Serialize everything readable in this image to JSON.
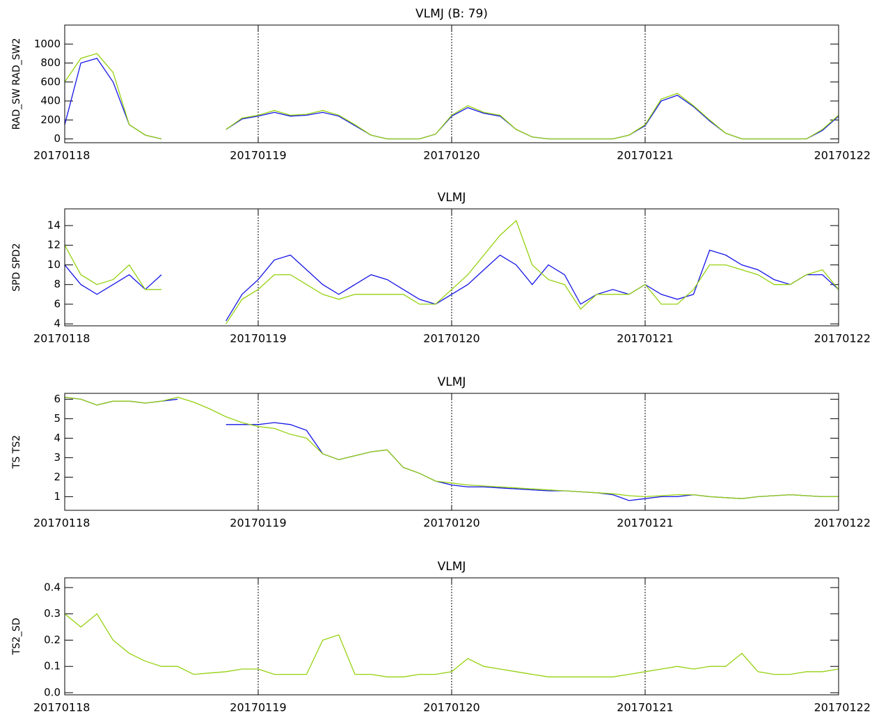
{
  "chart_data": [
    {
      "type": "line",
      "title": "VLMJ (B: 79)",
      "y_label": "RAD_SW RAD_SW2",
      "x": [
        0,
        2,
        4,
        6,
        8,
        10,
        12,
        14,
        16,
        18,
        20,
        22,
        24,
        26,
        28,
        30,
        32,
        34,
        36,
        38,
        40,
        42,
        44,
        46,
        48,
        50,
        52,
        54,
        56,
        58,
        60,
        62,
        64,
        66,
        68,
        70,
        72,
        74,
        76,
        78,
        80,
        82,
        84,
        86,
        88,
        90,
        92,
        94,
        96
      ],
      "xlim": [
        0,
        96
      ],
      "xticks": [
        {
          "value": 0,
          "label": "20170118"
        },
        {
          "value": 24,
          "label": "20170119"
        },
        {
          "value": 48,
          "label": "20170120"
        },
        {
          "value": 72,
          "label": "20170121"
        },
        {
          "value": 96,
          "label": "20170122"
        }
      ],
      "ylim": [
        -40,
        1200
      ],
      "yticks": [
        0,
        200,
        400,
        600,
        800,
        1000
      ],
      "grid": true,
      "series": [
        {
          "name": "RAD_SW",
          "color": "#1414e6",
          "values": [
            150,
            800,
            850,
            600,
            150,
            40,
            0,
            null,
            null,
            null,
            100,
            210,
            240,
            280,
            240,
            250,
            280,
            240,
            140,
            40,
            0,
            0,
            0,
            50,
            240,
            330,
            270,
            240,
            100,
            20,
            0,
            0,
            0,
            0,
            0,
            40,
            140,
            400,
            460,
            340,
            190,
            60,
            0,
            0,
            0,
            0,
            0,
            90,
            240
          ]
        },
        {
          "name": "RAD_SW2",
          "color": "#94d10f",
          "values": [
            600,
            850,
            900,
            700,
            150,
            40,
            0,
            null,
            null,
            null,
            100,
            220,
            250,
            300,
            250,
            260,
            300,
            250,
            150,
            40,
            0,
            0,
            0,
            50,
            250,
            350,
            280,
            250,
            100,
            20,
            0,
            0,
            0,
            0,
            0,
            40,
            150,
            420,
            480,
            350,
            200,
            60,
            0,
            0,
            0,
            0,
            0,
            100,
            250
          ]
        }
      ]
    },
    {
      "type": "line",
      "title": "VLMJ",
      "y_label": "SPD SPD2",
      "x": [
        0,
        2,
        4,
        6,
        8,
        10,
        12,
        14,
        16,
        18,
        20,
        22,
        24,
        26,
        28,
        30,
        32,
        34,
        36,
        38,
        40,
        42,
        44,
        46,
        48,
        50,
        52,
        54,
        56,
        58,
        60,
        62,
        64,
        66,
        68,
        70,
        72,
        74,
        76,
        78,
        80,
        82,
        84,
        86,
        88,
        90,
        92,
        94,
        96
      ],
      "xlim": [
        0,
        96
      ],
      "xticks": [
        {
          "value": 0,
          "label": "20170118"
        },
        {
          "value": 24,
          "label": "20170119"
        },
        {
          "value": 48,
          "label": "20170120"
        },
        {
          "value": 72,
          "label": "20170121"
        },
        {
          "value": 96,
          "label": "20170122"
        }
      ],
      "ylim": [
        3.8,
        15.7
      ],
      "yticks": [
        4,
        6,
        8,
        10,
        12,
        14
      ],
      "grid": true,
      "series": [
        {
          "name": "SPD",
          "color": "#1414e6",
          "values": [
            10,
            8,
            7,
            8,
            9,
            7.5,
            9,
            null,
            null,
            null,
            4.3,
            7,
            8.5,
            10.5,
            11,
            9.5,
            8,
            7,
            8,
            9,
            8.5,
            7.5,
            6.5,
            6,
            7,
            8,
            9.5,
            11,
            10,
            8,
            10,
            9,
            6,
            7,
            7.5,
            7,
            8,
            7,
            6.5,
            7,
            11.5,
            11,
            10,
            9.5,
            8.5,
            8,
            9,
            9,
            7.5
          ]
        },
        {
          "name": "SPD2",
          "color": "#94d10f",
          "values": [
            12,
            9,
            8,
            8.5,
            10,
            7.5,
            7.5,
            null,
            null,
            null,
            4,
            6.5,
            7.5,
            9,
            9,
            8,
            7,
            6.5,
            7,
            7,
            7,
            7,
            6,
            6,
            7.5,
            9,
            11,
            13,
            14.5,
            10,
            8.5,
            8,
            5.5,
            7,
            7,
            7,
            8,
            6,
            6,
            7.5,
            10,
            10,
            9.5,
            9,
            8,
            8,
            9,
            9.5,
            7.5
          ]
        }
      ]
    },
    {
      "type": "line",
      "title": "VLMJ",
      "y_label": "TS TS2",
      "x": [
        0,
        2,
        4,
        6,
        8,
        10,
        12,
        14,
        16,
        18,
        20,
        22,
        24,
        26,
        28,
        30,
        32,
        34,
        36,
        38,
        40,
        42,
        44,
        46,
        48,
        50,
        52,
        54,
        56,
        58,
        60,
        62,
        64,
        66,
        68,
        70,
        72,
        74,
        76,
        78,
        80,
        82,
        84,
        86,
        88,
        90,
        92,
        94,
        96
      ],
      "xlim": [
        0,
        96
      ],
      "xticks": [
        {
          "value": 0,
          "label": "20170118"
        },
        {
          "value": 24,
          "label": "20170119"
        },
        {
          "value": 48,
          "label": "20170120"
        },
        {
          "value": 72,
          "label": "20170121"
        },
        {
          "value": 96,
          "label": "20170122"
        }
      ],
      "ylim": [
        0.3,
        6.3
      ],
      "yticks": [
        1,
        2,
        3,
        4,
        5,
        6
      ],
      "grid": true,
      "series": [
        {
          "name": "TS",
          "color": "#1414e6",
          "values": [
            6.1,
            6,
            5.7,
            5.9,
            5.9,
            5.8,
            5.9,
            6.0,
            null,
            null,
            4.7,
            4.7,
            4.7,
            4.8,
            4.7,
            4.4,
            3.2,
            2.9,
            3.1,
            3.3,
            3.4,
            2.5,
            2.2,
            1.8,
            1.6,
            1.5,
            1.5,
            1.45,
            1.4,
            1.35,
            1.3,
            1.3,
            1.25,
            1.2,
            1.1,
            0.8,
            0.9,
            1.0,
            1.0,
            1.1,
            1.0,
            0.95,
            0.9,
            1.0,
            1.05,
            1.1,
            1.05,
            1.0,
            1.0
          ]
        },
        {
          "name": "TS2",
          "color": "#94d10f",
          "values": [
            6.1,
            6,
            5.7,
            5.9,
            5.9,
            5.8,
            5.9,
            6.1,
            5.85,
            5.5,
            5.1,
            4.8,
            4.6,
            4.5,
            4.2,
            4.0,
            3.2,
            2.9,
            3.1,
            3.3,
            3.4,
            2.5,
            2.2,
            1.8,
            1.7,
            1.6,
            1.55,
            1.5,
            1.45,
            1.4,
            1.35,
            1.3,
            1.25,
            1.2,
            1.15,
            1.05,
            1.0,
            1.05,
            1.1,
            1.1,
            1.0,
            0.95,
            0.9,
            1.0,
            1.05,
            1.1,
            1.05,
            1.0,
            1.0
          ]
        }
      ]
    },
    {
      "type": "line",
      "title": "VLMJ",
      "y_label": "TS2_SD",
      "x": [
        0,
        2,
        4,
        6,
        8,
        10,
        12,
        14,
        16,
        18,
        20,
        22,
        24,
        26,
        28,
        30,
        32,
        34,
        36,
        38,
        40,
        42,
        44,
        46,
        48,
        50,
        52,
        54,
        56,
        58,
        60,
        62,
        64,
        66,
        68,
        70,
        72,
        74,
        76,
        78,
        80,
        82,
        84,
        86,
        88,
        90,
        92,
        94,
        96
      ],
      "xlim": [
        0,
        96
      ],
      "xticks": [
        {
          "value": 0,
          "label": "20170118"
        },
        {
          "value": 24,
          "label": "20170119"
        },
        {
          "value": 48,
          "label": "20170120"
        },
        {
          "value": 72,
          "label": "20170121"
        },
        {
          "value": 96,
          "label": "20170122"
        }
      ],
      "ylim": [
        -0.008,
        0.437
      ],
      "yticks": [
        {
          "value": 0,
          "label": "0.0"
        },
        0.1,
        0.2,
        0.3,
        0.4
      ],
      "grid": true,
      "series": [
        {
          "name": "TS2_SD",
          "color": "#94d10f",
          "values": [
            0.3,
            0.25,
            0.3,
            0.2,
            0.15,
            0.12,
            0.1,
            0.1,
            0.07,
            0.075,
            0.08,
            0.09,
            0.09,
            0.07,
            0.07,
            0.07,
            0.2,
            0.22,
            0.07,
            0.07,
            0.06,
            0.06,
            0.07,
            0.07,
            0.08,
            0.13,
            0.1,
            0.09,
            0.08,
            0.07,
            0.06,
            0.06,
            0.06,
            0.06,
            0.06,
            0.07,
            0.08,
            0.09,
            0.1,
            0.09,
            0.1,
            0.1,
            0.15,
            0.08,
            0.07,
            0.07,
            0.08,
            0.08,
            0.09
          ]
        }
      ]
    }
  ]
}
